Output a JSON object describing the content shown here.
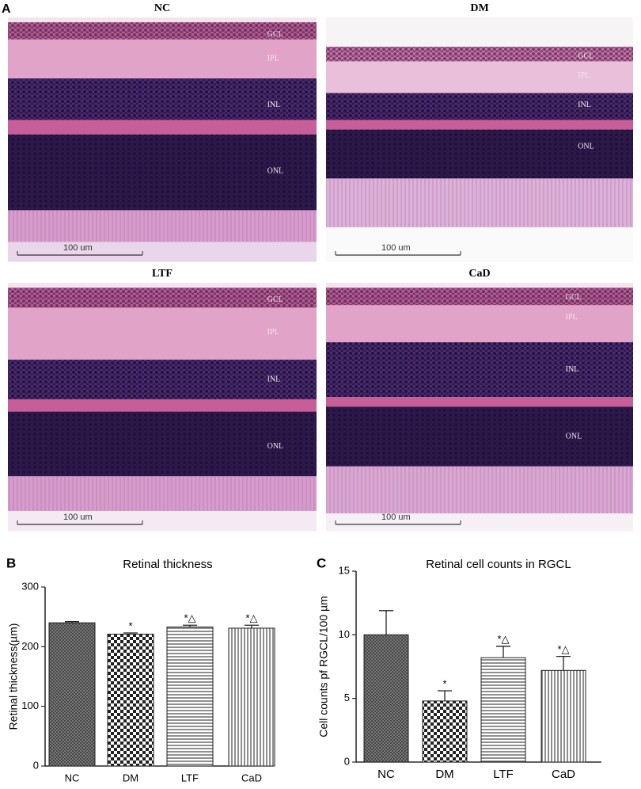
{
  "panel_a": {
    "label": "A",
    "images": [
      {
        "title": "NC",
        "layers": [
          "GCL",
          "IPL",
          "INL",
          "ONL"
        ],
        "scale_bar": "100 um"
      },
      {
        "title": "DM",
        "layers": [
          "GCL",
          "IPL",
          "INL",
          "ONL"
        ],
        "scale_bar": "100 um"
      },
      {
        "title": "LTF",
        "layers": [
          "GCL",
          "IPL",
          "INL",
          "ONL"
        ],
        "scale_bar": "100 um"
      },
      {
        "title": "CaD",
        "layers": [
          "GCL",
          "IPL",
          "INL",
          "ONL"
        ],
        "scale_bar": "100 um"
      }
    ]
  },
  "chart_data": [
    {
      "type": "bar",
      "panel": "B",
      "title": "Retinal thickness",
      "y_label": "Retinal thickness(µm)",
      "categories": [
        "NC",
        "DM",
        "LTF",
        "CaD"
      ],
      "values": [
        240,
        221,
        233,
        231
      ],
      "errors": [
        2,
        2,
        3,
        5
      ],
      "annotations": [
        null,
        "*",
        "*△",
        "*△"
      ],
      "ylim": [
        0,
        300
      ],
      "yticks": [
        0,
        100,
        200,
        300
      ]
    },
    {
      "type": "bar",
      "panel": "C",
      "title": "Retinal cell counts in RGCL",
      "y_label": "Cell counts pf RGCL/100 µm",
      "categories": [
        "NC",
        "DM",
        "LTF",
        "CaD"
      ],
      "values": [
        10,
        4.8,
        8.2,
        7.2
      ],
      "errors": [
        1.9,
        0.8,
        0.9,
        1.1
      ],
      "annotations": [
        null,
        "*",
        "*△",
        "*△"
      ],
      "ylim": [
        0,
        15
      ],
      "yticks": [
        0,
        5,
        10,
        15
      ]
    }
  ]
}
